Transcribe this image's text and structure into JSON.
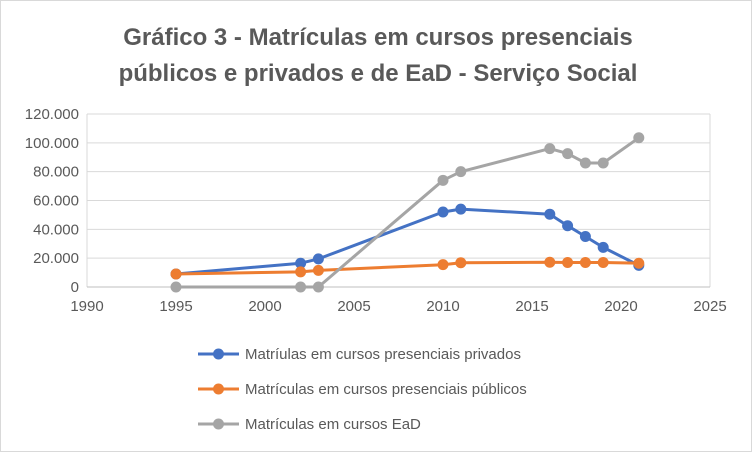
{
  "chart_data": {
    "type": "scatter",
    "title_lines": [
      "Gráfico 3 - Matrículas em cursos presenciais",
      "públicos e privados e de EaD - Serviço Social"
    ],
    "xlabel": "",
    "ylabel": "",
    "xlim": [
      1990,
      2025
    ],
    "ylim": [
      0,
      120000
    ],
    "x_ticks": [
      1990,
      1995,
      2000,
      2005,
      2010,
      2015,
      2020,
      2025
    ],
    "y_ticks": [
      0,
      20000,
      40000,
      60000,
      80000,
      100000,
      120000
    ],
    "x_tick_labels": [
      "1990",
      "1995",
      "2000",
      "2005",
      "2010",
      "2015",
      "2020",
      "2025"
    ],
    "y_tick_labels": [
      "0",
      "20.000",
      "40.000",
      "60.000",
      "80.000",
      "100.000",
      "120.000"
    ],
    "grid": "horizontal",
    "legend_position": "bottom",
    "series": [
      {
        "name": "Matríulas em cursos presenciais privados",
        "color": "#4472C4",
        "x": [
          1995,
          2002,
          2003,
          2010,
          2011,
          2016,
          2017,
          2018,
          2019,
          2021
        ],
        "y": [
          9000,
          16500,
          19500,
          52000,
          54000,
          50500,
          42500,
          35000,
          27500,
          15000
        ]
      },
      {
        "name": "Matrículas em cursos presenciais públicos",
        "color": "#ED7D31",
        "x": [
          1995,
          2002,
          2003,
          2010,
          2011,
          2016,
          2017,
          2018,
          2019,
          2021
        ],
        "y": [
          9000,
          10500,
          11500,
          15500,
          16800,
          17200,
          17000,
          17000,
          17000,
          16500
        ]
      },
      {
        "name": "Matrículas em cursos EaD",
        "color": "#A5A5A5",
        "x": [
          1995,
          2002,
          2003,
          2010,
          2011,
          2016,
          2017,
          2018,
          2019,
          2021
        ],
        "y": [
          0,
          0,
          0,
          74000,
          80000,
          96000,
          92500,
          86000,
          86000,
          103500
        ]
      }
    ]
  }
}
